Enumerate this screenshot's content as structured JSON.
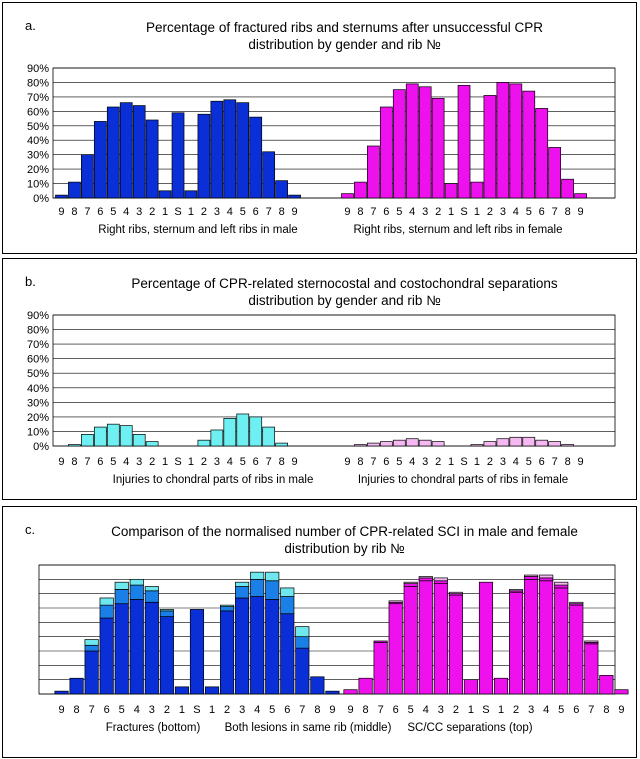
{
  "colors": {
    "male_fracture": "#0a2fd6",
    "male_both": "#1a7fe6",
    "male_scc_a": "#6ee8ee",
    "male_scc_b": "#6ef0f2",
    "female": "#ee11ee",
    "female_light": "#f6b8f2",
    "grid": "#000000",
    "plot_bg": "#ffffff"
  },
  "chart_data": [
    {
      "id": "a",
      "letter": "a.",
      "type": "bar",
      "title_lines": [
        "Percentage of fractured ribs and sternums after unsuccessful CPR",
        "distribution by gender and rib №"
      ],
      "ytick_labels": [
        "90%",
        "80%",
        "70%",
        "60%",
        "50%",
        "40%",
        "30%",
        "20%",
        "10%",
        "0%"
      ],
      "ylim": [
        0,
        90
      ],
      "categories": [
        "9",
        "8",
        "7",
        "6",
        "5",
        "4",
        "3",
        "2",
        "1",
        "S",
        "1",
        "2",
        "3",
        "4",
        "5",
        "6",
        "7",
        "8",
        "9"
      ],
      "group_labels": [
        "Right ribs, sternum and left ribs in male",
        "Right ribs, sternum and left ribs in female"
      ],
      "series": [
        {
          "name": "male",
          "values": [
            2,
            11,
            30,
            53,
            63,
            66,
            64,
            54,
            5,
            59,
            5,
            58,
            67,
            68,
            66,
            56,
            32,
            12,
            2
          ]
        },
        {
          "name": "female",
          "values": [
            3,
            11,
            36,
            63,
            75,
            79,
            77,
            69,
            10,
            78,
            11,
            71,
            80,
            79,
            74,
            62,
            35,
            13,
            3
          ]
        }
      ]
    },
    {
      "id": "b",
      "letter": "b.",
      "type": "bar",
      "title_lines": [
        "Percentage of CPR-related sternocostal and costochondral separations",
        "distribution by gender and rib №"
      ],
      "ytick_labels": [
        "90%",
        "80%",
        "70%",
        "60%",
        "50%",
        "40%",
        "30%",
        "20%",
        "10%",
        "0%"
      ],
      "ylim": [
        0,
        90
      ],
      "categories": [
        "9",
        "8",
        "7",
        "6",
        "5",
        "4",
        "3",
        "2",
        "1",
        "S",
        "1",
        "2",
        "3",
        "4",
        "5",
        "6",
        "7",
        "8",
        "9"
      ],
      "group_labels": [
        "Injuries to chondral parts of ribs in male",
        "Injuries to chondral parts of ribs in female"
      ],
      "series": [
        {
          "name": "male",
          "values": [
            0,
            1,
            8,
            13,
            15,
            14,
            8,
            3,
            0,
            0,
            0,
            4,
            11,
            19,
            22,
            20,
            13,
            2,
            0
          ]
        },
        {
          "name": "female",
          "values": [
            0,
            1,
            2,
            3,
            4,
            5,
            4,
            3,
            0,
            0,
            1,
            3,
            5,
            6,
            6,
            4,
            3,
            1,
            0
          ]
        }
      ]
    },
    {
      "id": "c",
      "letter": "c.",
      "type": "stacked-bar",
      "title_lines": [
        "Comparison of the normalised number of CPR-related SCI in male and female",
        "distribution by rib №"
      ],
      "ytick_labels": [],
      "ylim": [
        0,
        90
      ],
      "categories": [
        "9",
        "8",
        "7",
        "6",
        "5",
        "4",
        "3",
        "2",
        "1",
        "S",
        "1",
        "2",
        "3",
        "4",
        "5",
        "6",
        "7",
        "8",
        "9"
      ],
      "group_labels": [
        "Fractures (bottom)",
        "Both lesions in same rib (middle)",
        "SC/CC separations (top)"
      ],
      "series": [
        {
          "group": "male",
          "name": "Fractures",
          "values": [
            2,
            11,
            30,
            53,
            63,
            66,
            64,
            54,
            5,
            59,
            5,
            58,
            67,
            68,
            66,
            56,
            32,
            12,
            2
          ]
        },
        {
          "group": "male",
          "name": "Both lesions",
          "values": [
            0,
            0,
            4,
            9,
            10,
            10,
            8,
            4,
            0,
            0,
            0,
            3,
            8,
            12,
            13,
            12,
            8,
            0,
            0
          ]
        },
        {
          "group": "male",
          "name": "SC/CC separations",
          "values": [
            0,
            0,
            4,
            5,
            5,
            4,
            3,
            1,
            0,
            0,
            0,
            1,
            3,
            5,
            6,
            6,
            7,
            0,
            0
          ]
        },
        {
          "group": "female",
          "name": "Fractures",
          "values": [
            3,
            11,
            36,
            63,
            75,
            79,
            77,
            69,
            10,
            78,
            11,
            71,
            80,
            79,
            74,
            62,
            35,
            13,
            3
          ]
        },
        {
          "group": "female",
          "name": "Both lesions",
          "values": [
            0,
            0,
            1,
            1,
            2,
            2,
            2,
            1,
            0,
            0,
            0,
            1,
            2,
            2,
            2,
            1,
            1,
            0,
            0
          ]
        },
        {
          "group": "female",
          "name": "SC/CC separations",
          "values": [
            0,
            0,
            0,
            1,
            1,
            1,
            2,
            1,
            0,
            0,
            0,
            1,
            1,
            2,
            2,
            1,
            1,
            0,
            0
          ]
        }
      ]
    }
  ]
}
